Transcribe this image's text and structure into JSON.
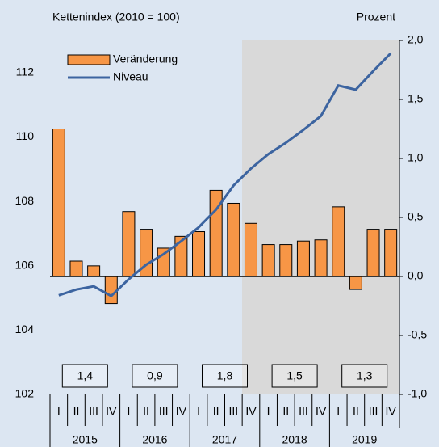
{
  "chart_data": {
    "type": "bar",
    "y_axis_label": "Kettenindex (2010 = 100)",
    "y2_axis_label": "Prozent",
    "categories": [
      "I",
      "II",
      "III",
      "IV",
      "I",
      "II",
      "III",
      "IV",
      "I",
      "II",
      "III",
      "IV",
      "I",
      "II",
      "III",
      "IV",
      "I",
      "II",
      "III",
      "IV"
    ],
    "years": [
      "2015",
      "2016",
      "2017",
      "2018",
      "2019"
    ],
    "annotations": [
      "1,4",
      "0,9",
      "1,8",
      "1,5",
      "1,3"
    ],
    "series": [
      {
        "name": "Veränderung",
        "type": "bar",
        "axis": "y2",
        "color": "#f79646",
        "values": [
          1.25,
          0.13,
          0.09,
          -0.23,
          0.55,
          0.4,
          0.24,
          0.34,
          0.38,
          0.73,
          0.62,
          0.45,
          0.27,
          0.27,
          0.3,
          0.31,
          0.59,
          -0.11,
          0.4,
          0.4
        ]
      },
      {
        "name": "Niveau",
        "type": "line",
        "axis": "y",
        "color": "#3c64a0",
        "values": [
          105.08,
          105.26,
          105.36,
          105.06,
          105.58,
          106.03,
          106.36,
          106.76,
          107.19,
          107.74,
          108.49,
          109.02,
          109.47,
          109.82,
          110.22,
          110.65,
          111.6,
          111.47,
          112.05,
          112.6
        ]
      }
    ],
    "ylim": [
      102,
      113
    ],
    "yticks": [
      102,
      104,
      106,
      108,
      110,
      112
    ],
    "y2lim": [
      -1,
      2
    ],
    "y2ticks": [
      {
        "value": -1,
        "label": "-1,0"
      },
      {
        "value": -0.5,
        "label": "-0,5"
      },
      {
        "value": 0,
        "label": "0,0"
      },
      {
        "value": 0.5,
        "label": "0,5"
      },
      {
        "value": 1,
        "label": "1,0"
      },
      {
        "value": 1.5,
        "label": "1,5"
      },
      {
        "value": 2,
        "label": "2,0"
      }
    ],
    "legend": "top-left"
  }
}
